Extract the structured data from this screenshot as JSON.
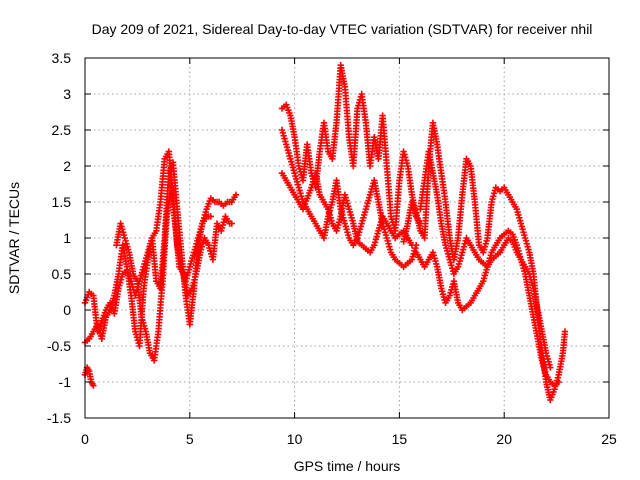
{
  "chart_data": {
    "type": "scatter",
    "title": "Day 209 of 2021, Sidereal Day-to-day VTEC variation (SDTVAR) for receiver nhil",
    "xlabel": "GPS time / hours",
    "ylabel": "SDTVAR / TECUs",
    "xlim": [
      0,
      25
    ],
    "ylim": [
      -1.5,
      3.5
    ],
    "x_ticks": [
      "0",
      "5",
      "10",
      "15",
      "20",
      "25"
    ],
    "y_ticks": [
      "-1.5",
      "-1",
      "-0.5",
      "0",
      "0.5",
      "1",
      "1.5",
      "2",
      "2.5",
      "3",
      "3.5"
    ],
    "grid": true,
    "marker": "+",
    "color": "#ff0000",
    "series": [
      {
        "values": [
          [
            0.0,
            0.1
          ],
          [
            0.2,
            0.25
          ],
          [
            0.4,
            0.2
          ],
          [
            0.6,
            -0.3
          ],
          [
            0.8,
            -0.15
          ],
          [
            1.0,
            0.0
          ],
          [
            1.2,
            0.1
          ],
          [
            1.4,
            -0.05
          ],
          [
            1.6,
            0.3
          ],
          [
            1.8,
            0.5
          ],
          [
            2.0,
            0.55
          ],
          [
            2.2,
            0.4
          ],
          [
            2.4,
            0.2
          ],
          [
            2.6,
            0.4
          ],
          [
            2.8,
            0.6
          ],
          [
            3.0,
            0.8
          ],
          [
            3.2,
            1.0
          ],
          [
            3.4,
            1.1
          ],
          [
            3.6,
            1.5
          ],
          [
            3.8,
            2.1
          ],
          [
            4.0,
            2.2
          ],
          [
            4.2,
            1.6
          ],
          [
            4.4,
            0.9
          ],
          [
            4.6,
            0.6
          ],
          [
            4.8,
            0.4
          ],
          [
            5.0,
            0.6
          ],
          [
            5.2,
            0.8
          ],
          [
            5.4,
            1.0
          ],
          [
            5.6,
            1.2
          ],
          [
            5.8,
            1.4
          ],
          [
            6.0,
            1.55
          ],
          [
            6.2,
            1.5
          ],
          [
            6.4,
            1.5
          ],
          [
            6.6,
            1.45
          ],
          [
            6.8,
            1.5
          ],
          [
            7.0,
            1.5
          ],
          [
            7.2,
            1.6
          ]
        ]
      },
      {
        "values": [
          [
            0.0,
            -0.45
          ],
          [
            0.2,
            -0.4
          ],
          [
            0.4,
            -0.3
          ],
          [
            0.6,
            -0.2
          ],
          [
            0.8,
            -0.4
          ],
          [
            1.0,
            -0.1
          ],
          [
            1.2,
            0.0
          ],
          [
            1.4,
            0.2
          ],
          [
            1.6,
            0.5
          ],
          [
            1.8,
            0.9
          ],
          [
            2.0,
            0.6
          ],
          [
            2.2,
            0.2
          ],
          [
            2.4,
            -0.3
          ],
          [
            2.6,
            -0.5
          ],
          [
            2.8,
            0.3
          ],
          [
            3.0,
            0.7
          ],
          [
            3.2,
            1.0
          ],
          [
            3.4,
            0.4
          ],
          [
            3.6,
            0.3
          ],
          [
            3.8,
            1.0
          ],
          [
            4.0,
            1.9
          ],
          [
            4.2,
            2.05
          ],
          [
            4.4,
            1.4
          ],
          [
            4.6,
            0.8
          ],
          [
            4.8,
            0.2
          ],
          [
            5.0,
            -0.2
          ],
          [
            5.2,
            0.3
          ],
          [
            5.4,
            0.9
          ],
          [
            5.6,
            1.2
          ],
          [
            5.8,
            1.3
          ],
          [
            6.0,
            1.3
          ]
        ]
      },
      {
        "values": [
          [
            0.0,
            -0.9
          ],
          [
            0.1,
            -0.8
          ],
          [
            0.2,
            -0.85
          ],
          [
            0.3,
            -1.0
          ],
          [
            0.4,
            -1.05
          ]
        ]
      },
      {
        "values": [
          [
            1.5,
            0.9
          ],
          [
            1.7,
            1.2
          ],
          [
            1.9,
            1.0
          ],
          [
            2.1,
            0.8
          ],
          [
            2.3,
            0.5
          ],
          [
            2.5,
            0.4
          ],
          [
            2.7,
            -0.1
          ],
          [
            2.9,
            -0.3
          ],
          [
            3.1,
            -0.6
          ],
          [
            3.3,
            -0.7
          ],
          [
            3.5,
            -0.3
          ],
          [
            3.7,
            0.4
          ],
          [
            3.9,
            1.3
          ],
          [
            4.1,
            1.7
          ],
          [
            4.3,
            1.2
          ],
          [
            4.5,
            0.6
          ],
          [
            4.7,
            0.5
          ],
          [
            4.9,
            0.2
          ],
          [
            5.1,
            0.3
          ],
          [
            5.3,
            0.5
          ],
          [
            5.5,
            0.8
          ],
          [
            5.7,
            1.0
          ],
          [
            5.9,
            0.9
          ],
          [
            6.1,
            0.7
          ],
          [
            6.3,
            1.2
          ],
          [
            6.5,
            1.1
          ],
          [
            6.7,
            1.3
          ],
          [
            6.9,
            1.2
          ],
          [
            7.0,
            1.2
          ]
        ]
      },
      {
        "values": [
          [
            9.4,
            2.8
          ],
          [
            9.6,
            2.85
          ],
          [
            9.8,
            2.7
          ],
          [
            10.0,
            2.4
          ],
          [
            10.2,
            2.0
          ],
          [
            10.4,
            1.8
          ],
          [
            10.6,
            2.3
          ],
          [
            10.8,
            1.9
          ],
          [
            11.0,
            1.7
          ],
          [
            11.2,
            2.2
          ],
          [
            11.4,
            2.6
          ],
          [
            11.6,
            2.2
          ],
          [
            11.8,
            2.1
          ],
          [
            12.0,
            2.6
          ],
          [
            12.2,
            3.4
          ],
          [
            12.4,
            3.1
          ],
          [
            12.6,
            2.4
          ],
          [
            12.8,
            2.0
          ],
          [
            13.0,
            2.8
          ],
          [
            13.2,
            3.0
          ],
          [
            13.4,
            2.6
          ],
          [
            13.6,
            2.0
          ],
          [
            13.8,
            2.4
          ],
          [
            14.0,
            2.1
          ],
          [
            14.2,
            2.7
          ],
          [
            14.4,
            2.0
          ],
          [
            14.6,
            1.3
          ],
          [
            14.8,
            1.1
          ],
          [
            15.0,
            1.8
          ],
          [
            15.2,
            2.2
          ],
          [
            15.4,
            2.0
          ],
          [
            15.6,
            1.6
          ],
          [
            15.8,
            1.3
          ],
          [
            16.0,
            1.2
          ]
        ]
      },
      {
        "values": [
          [
            9.4,
            2.5
          ],
          [
            9.6,
            2.3
          ],
          [
            9.8,
            2.1
          ],
          [
            10.0,
            1.9
          ],
          [
            10.2,
            1.7
          ],
          [
            10.4,
            1.5
          ],
          [
            10.6,
            1.4
          ],
          [
            10.8,
            1.3
          ],
          [
            11.0,
            1.2
          ],
          [
            11.2,
            1.1
          ],
          [
            11.4,
            1.0
          ],
          [
            11.6,
            1.3
          ],
          [
            11.8,
            1.5
          ],
          [
            12.0,
            1.8
          ],
          [
            12.2,
            1.4
          ],
          [
            12.4,
            1.2
          ],
          [
            12.6,
            1.0
          ],
          [
            12.8,
            0.9
          ],
          [
            13.0,
            1.0
          ],
          [
            13.2,
            1.2
          ],
          [
            13.4,
            1.4
          ],
          [
            13.6,
            1.6
          ],
          [
            13.8,
            1.8
          ],
          [
            14.0,
            1.5
          ],
          [
            14.2,
            1.2
          ],
          [
            14.4,
            1.0
          ],
          [
            14.6,
            0.8
          ],
          [
            14.8,
            0.7
          ],
          [
            15.0,
            0.65
          ],
          [
            15.2,
            0.6
          ],
          [
            15.4,
            0.65
          ],
          [
            15.6,
            0.7
          ],
          [
            15.8,
            0.9
          ]
        ]
      },
      {
        "values": [
          [
            9.4,
            1.9
          ],
          [
            9.6,
            1.8
          ],
          [
            9.8,
            1.7
          ],
          [
            10.0,
            1.6
          ],
          [
            10.2,
            1.5
          ],
          [
            10.4,
            1.4
          ],
          [
            10.6,
            1.55
          ],
          [
            10.8,
            1.7
          ],
          [
            11.0,
            1.9
          ],
          [
            11.2,
            1.6
          ],
          [
            11.4,
            1.5
          ],
          [
            11.6,
            1.4
          ],
          [
            11.8,
            1.2
          ],
          [
            12.0,
            1.1
          ],
          [
            12.2,
            1.3
          ],
          [
            12.4,
            1.6
          ],
          [
            12.6,
            1.4
          ],
          [
            12.8,
            1.2
          ],
          [
            13.0,
            0.95
          ],
          [
            13.2,
            0.9
          ],
          [
            13.4,
            0.85
          ],
          [
            13.6,
            0.8
          ],
          [
            13.8,
            0.9
          ],
          [
            14.0,
            1.1
          ],
          [
            14.2,
            1.3
          ],
          [
            14.4,
            1.2
          ],
          [
            14.6,
            1.1
          ],
          [
            14.8,
            1.0
          ],
          [
            15.0,
            1.05
          ],
          [
            15.2,
            1.1
          ],
          [
            15.4,
            1.0
          ],
          [
            15.6,
            0.9
          ]
        ]
      },
      {
        "values": [
          [
            15.2,
            0.95
          ],
          [
            15.4,
            1.2
          ],
          [
            15.6,
            1.5
          ],
          [
            15.8,
            1.35
          ],
          [
            16.0,
            1.1
          ],
          [
            16.2,
            1.0
          ],
          [
            16.4,
            2.0
          ],
          [
            16.6,
            2.6
          ],
          [
            16.8,
            2.3
          ],
          [
            17.0,
            1.9
          ],
          [
            17.2,
            1.5
          ],
          [
            17.4,
            1.0
          ],
          [
            17.6,
            0.7
          ],
          [
            17.8,
            1.0
          ],
          [
            18.0,
            1.6
          ],
          [
            18.2,
            2.1
          ],
          [
            18.4,
            2.0
          ],
          [
            18.6,
            1.5
          ],
          [
            18.8,
            0.9
          ],
          [
            19.0,
            0.8
          ],
          [
            19.2,
            1.0
          ],
          [
            19.4,
            1.5
          ],
          [
            19.6,
            1.7
          ],
          [
            19.8,
            1.65
          ],
          [
            20.0,
            1.7
          ],
          [
            20.2,
            1.6
          ],
          [
            20.4,
            1.5
          ],
          [
            20.6,
            1.4
          ],
          [
            20.8,
            1.2
          ],
          [
            21.0,
            1.0
          ],
          [
            21.2,
            0.8
          ],
          [
            21.4,
            0.5
          ],
          [
            21.6,
            -0.1
          ],
          [
            21.8,
            -0.6
          ],
          [
            22.0,
            -1.0
          ],
          [
            22.2,
            -1.25
          ],
          [
            22.4,
            -1.1
          ],
          [
            22.6,
            -0.9
          ],
          [
            22.8,
            -0.6
          ],
          [
            22.9,
            -0.3
          ]
        ]
      },
      {
        "values": [
          [
            15.8,
            0.8
          ],
          [
            16.0,
            0.7
          ],
          [
            16.2,
            0.6
          ],
          [
            16.4,
            0.7
          ],
          [
            16.6,
            0.8
          ],
          [
            16.8,
            0.6
          ],
          [
            17.0,
            0.3
          ],
          [
            17.2,
            0.1
          ],
          [
            17.4,
            0.2
          ],
          [
            17.6,
            0.4
          ],
          [
            17.8,
            0.1
          ],
          [
            18.0,
            0.0
          ],
          [
            18.2,
            0.05
          ],
          [
            18.4,
            0.1
          ],
          [
            18.6,
            0.2
          ],
          [
            18.8,
            0.3
          ],
          [
            19.0,
            0.4
          ],
          [
            19.2,
            0.6
          ],
          [
            19.4,
            0.8
          ],
          [
            19.6,
            0.9
          ],
          [
            19.8,
            1.0
          ],
          [
            20.0,
            1.05
          ],
          [
            20.2,
            1.1
          ],
          [
            20.4,
            1.05
          ],
          [
            20.6,
            0.9
          ],
          [
            20.8,
            0.7
          ],
          [
            21.0,
            0.5
          ],
          [
            21.2,
            0.2
          ],
          [
            21.4,
            -0.1
          ],
          [
            21.6,
            -0.4
          ],
          [
            21.8,
            -0.7
          ],
          [
            22.0,
            -0.9
          ],
          [
            22.2,
            -1.0
          ],
          [
            22.4,
            -1.05
          ],
          [
            22.6,
            -1.0
          ]
        ]
      },
      {
        "values": [
          [
            16.0,
            1.4
          ],
          [
            16.2,
            1.8
          ],
          [
            16.4,
            2.2
          ],
          [
            16.6,
            1.9
          ],
          [
            16.8,
            1.6
          ],
          [
            17.0,
            1.2
          ],
          [
            17.2,
            0.9
          ],
          [
            17.4,
            0.7
          ],
          [
            17.6,
            0.5
          ],
          [
            17.8,
            0.6
          ],
          [
            18.0,
            0.8
          ],
          [
            18.2,
            1.0
          ],
          [
            18.4,
            0.9
          ],
          [
            18.6,
            0.8
          ],
          [
            18.8,
            0.7
          ],
          [
            19.0,
            0.65
          ],
          [
            19.2,
            0.6
          ],
          [
            19.4,
            0.7
          ],
          [
            19.6,
            0.75
          ],
          [
            19.8,
            0.8
          ],
          [
            20.0,
            0.9
          ],
          [
            20.2,
            1.0
          ],
          [
            20.4,
            0.95
          ],
          [
            20.6,
            0.8
          ],
          [
            20.8,
            0.7
          ],
          [
            21.0,
            0.6
          ],
          [
            21.2,
            0.5
          ],
          [
            21.4,
            0.3
          ],
          [
            21.6,
            0.0
          ],
          [
            21.8,
            -0.3
          ],
          [
            22.0,
            -0.6
          ],
          [
            22.2,
            -0.8
          ]
        ]
      }
    ]
  }
}
